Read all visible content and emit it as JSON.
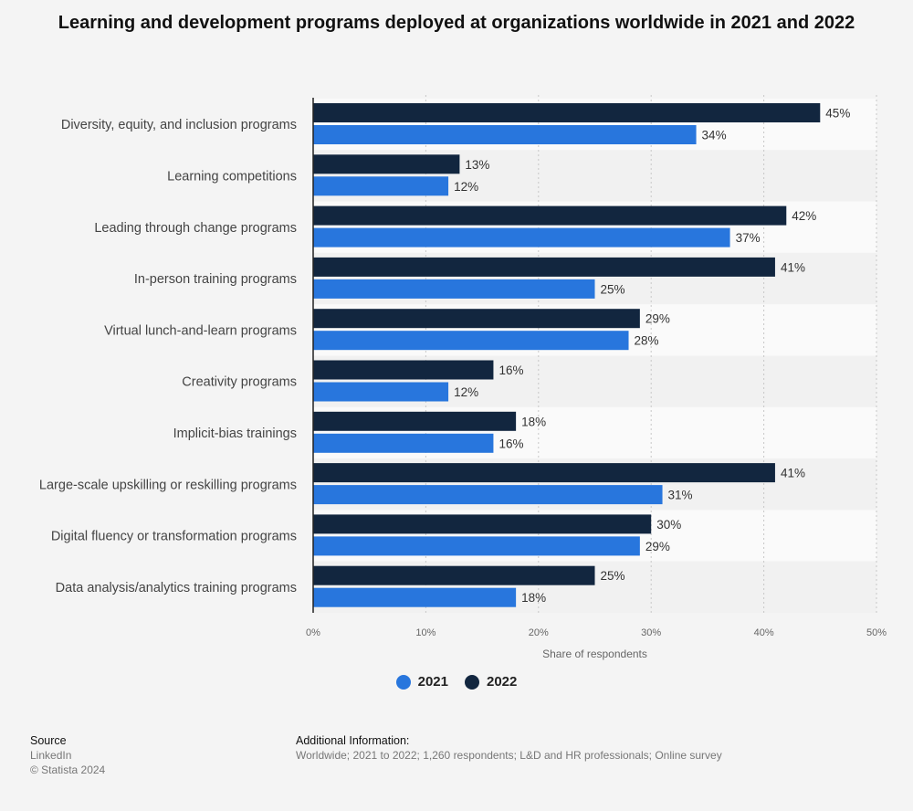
{
  "title": "Learning and development programs deployed at organizations worldwide in 2021 and 2022",
  "legend": [
    {
      "label": "2021",
      "color": "#2876dd"
    },
    {
      "label": "2022",
      "color": "#12263f"
    }
  ],
  "footer": {
    "source_heading": "Source",
    "source_lines": [
      "LinkedIn",
      "© Statista 2024"
    ],
    "info_heading": "Additional Information:",
    "info_text": "Worldwide; 2021 to 2022; 1,260 respondents; L&D and HR professionals; Online survey"
  },
  "chart_data": {
    "type": "bar",
    "orientation": "horizontal",
    "categories": [
      "Diversity, equity, and inclusion programs",
      "Learning competitions",
      "Leading through change programs",
      "In-person training programs",
      "Virtual lunch-and-learn programs",
      "Creativity programs",
      "Implicit-bias trainings",
      "Large-scale upskilling or reskilling programs",
      "Digital fluency or transformation programs",
      "Data analysis/analytics training programs"
    ],
    "series": [
      {
        "name": "2022",
        "color": "#12263f",
        "values": [
          45,
          13,
          42,
          41,
          29,
          16,
          18,
          41,
          30,
          25
        ]
      },
      {
        "name": "2021",
        "color": "#2876dd",
        "values": [
          34,
          12,
          37,
          25,
          28,
          12,
          16,
          31,
          29,
          18
        ]
      }
    ],
    "value_suffix": "%",
    "xlabel": "Share of respondents",
    "xlim": [
      0,
      50
    ],
    "xticks": [
      "0%",
      "10%",
      "20%",
      "30%",
      "40%",
      "50%"
    ],
    "grid": true
  }
}
